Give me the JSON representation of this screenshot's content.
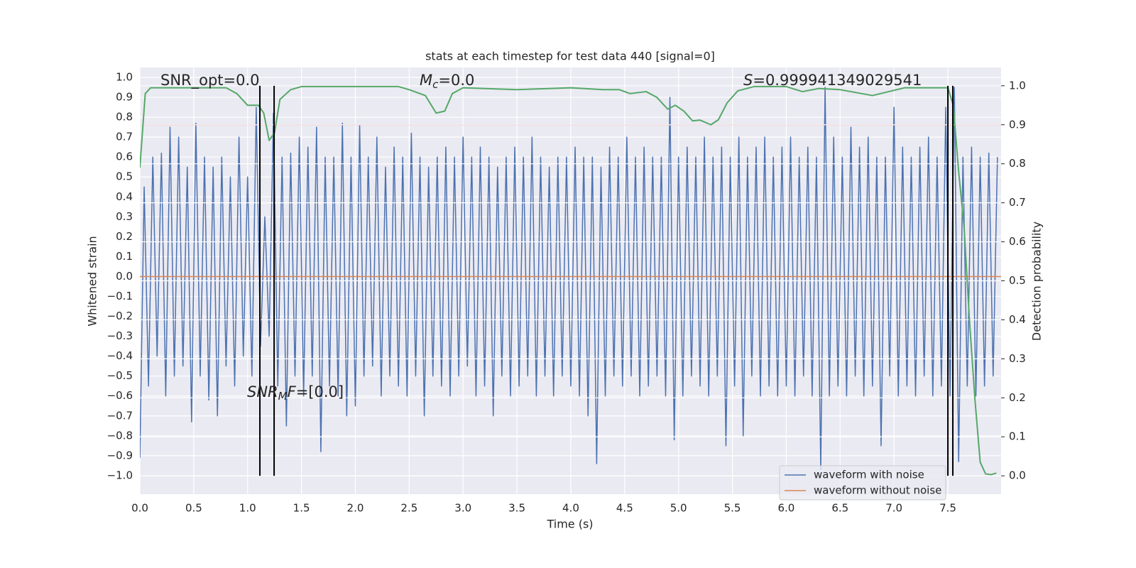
{
  "chart_data": {
    "type": "line",
    "title": "stats at each timestep for test data 440 [signal=0]",
    "xlabel": "Time (s)",
    "ylabel": "Whitened strain",
    "y2label": "Detection probability",
    "xlim": [
      0,
      7.994
    ],
    "ylim": [
      -1.093,
      1.05
    ],
    "y2lim": [
      -0.047,
      1.047
    ],
    "xticks": [
      {
        "value": 0,
        "label": "0.0"
      },
      0.5,
      {
        "value": 1,
        "label": "1.0"
      },
      1.5,
      {
        "value": 2,
        "label": "2.0"
      },
      2.5,
      {
        "value": 3,
        "label": "3.0"
      },
      3.5,
      {
        "value": 4,
        "label": "4.0"
      },
      4.5,
      {
        "value": 5,
        "label": "5.0"
      },
      5.5,
      {
        "value": 6,
        "label": "6.0"
      },
      6.5,
      {
        "value": 7,
        "label": "7.0"
      },
      7.5
    ],
    "yticks": [
      {
        "value": -1,
        "label": "−1.0"
      },
      {
        "value": -0.9,
        "label": "−0.9"
      },
      {
        "value": -0.8,
        "label": "−0.8"
      },
      {
        "value": -0.7,
        "label": "−0.7"
      },
      {
        "value": -0.6,
        "label": "−0.6"
      },
      {
        "value": -0.5,
        "label": "−0.5"
      },
      {
        "value": -0.4,
        "label": "−0.4"
      },
      {
        "value": -0.3,
        "label": "−0.3"
      },
      {
        "value": -0.2,
        "label": "−0.2"
      },
      {
        "value": -0.1,
        "label": "−0.1"
      },
      {
        "value": 0,
        "label": "0.0"
      },
      0.1,
      0.2,
      0.3,
      0.4,
      0.5,
      0.6,
      0.7,
      0.8,
      0.9,
      {
        "value": 1,
        "label": "1.0"
      }
    ],
    "y2ticks": [
      {
        "value": 0,
        "label": "0.0"
      },
      0.1,
      0.2,
      0.3,
      0.4,
      0.5,
      0.6,
      0.7,
      0.8,
      0.9,
      {
        "value": 1,
        "label": "1.0"
      }
    ],
    "grid": true,
    "legend": "lower right",
    "series": [
      {
        "name": "waveform with noise",
        "color": "#4c72b0",
        "x0": 0,
        "dx": 0.04,
        "values": [
          -0.91,
          0.45,
          -0.55,
          0.6,
          -0.4,
          0.62,
          -0.6,
          0.75,
          -0.5,
          0.7,
          -0.45,
          0.55,
          -0.73,
          0.77,
          -0.5,
          0.6,
          -0.62,
          0.55,
          -0.7,
          0.6,
          -0.45,
          0.5,
          -0.55,
          0.7,
          -0.4,
          0.5,
          -0.5,
          0.85,
          -0.35,
          0.3,
          -0.3,
          0.82,
          -0.55,
          0.6,
          -0.75,
          0.62,
          -0.5,
          0.7,
          -0.6,
          0.65,
          -0.5,
          0.75,
          -0.88,
          0.6,
          -0.55,
          0.6,
          -0.6,
          0.77,
          -0.7,
          0.6,
          -0.65,
          0.76,
          -0.5,
          0.6,
          -0.45,
          0.7,
          -0.6,
          0.55,
          -0.5,
          0.65,
          -0.55,
          0.6,
          -0.6,
          0.72,
          -0.5,
          0.6,
          -0.7,
          0.55,
          -0.5,
          0.6,
          -0.55,
          0.65,
          -0.6,
          0.6,
          -0.5,
          0.7,
          -0.45,
          0.6,
          -0.6,
          0.65,
          -0.55,
          0.6,
          -0.7,
          0.55,
          -0.5,
          0.6,
          -0.6,
          0.65,
          -0.55,
          0.6,
          -0.5,
          0.7,
          -0.6,
          0.6,
          -0.5,
          0.55,
          -0.6,
          0.6,
          -0.5,
          0.6,
          -0.55,
          0.65,
          -0.6,
          0.6,
          -0.7,
          0.6,
          -0.94,
          0.55,
          -0.6,
          0.65,
          -0.5,
          0.6,
          -0.55,
          0.7,
          -0.5,
          0.6,
          -0.6,
          0.65,
          -0.55,
          0.6,
          -0.5,
          0.6,
          -0.6,
          0.9,
          -0.82,
          0.6,
          -0.6,
          0.65,
          -0.5,
          0.6,
          -0.55,
          0.7,
          -0.6,
          0.6,
          -0.5,
          0.65,
          -0.85,
          0.6,
          -0.55,
          0.7,
          -0.8,
          0.6,
          -0.5,
          0.65,
          -0.6,
          0.7,
          -0.55,
          0.6,
          -0.6,
          0.65,
          -0.55,
          0.7,
          -0.6,
          0.6,
          -0.5,
          0.65,
          -0.6,
          0.6,
          -0.97,
          0.95,
          -0.6,
          0.7,
          -0.55,
          0.6,
          -0.6,
          0.75,
          -0.5,
          0.65,
          -0.6,
          0.7,
          -0.55,
          0.6,
          -0.85,
          0.6,
          -0.5,
          0.85,
          -0.6,
          0.65,
          -0.55,
          0.6,
          -0.6,
          0.65,
          -0.5,
          0.7,
          -0.6,
          0.6,
          -0.55,
          0.85,
          -0.6,
          0.95,
          -0.93,
          0.6,
          -0.55,
          0.65,
          -0.6,
          0.6,
          -0.55,
          0.62,
          -0.5,
          0.6
        ]
      },
      {
        "name": "waveform without noise",
        "color": "#dd8452",
        "x": [
          0,
          7.994
        ],
        "values": [
          0,
          0
        ]
      },
      {
        "color": "#55a868",
        "axis": "y2",
        "x": [
          0,
          0.05,
          0.1,
          0.8,
          0.9,
          1.0,
          1.1,
          1.15,
          1.2,
          1.25,
          1.3,
          1.4,
          1.5,
          2.4,
          2.5,
          2.65,
          2.75,
          2.83,
          2.9,
          3.0,
          3.5,
          4.0,
          4.3,
          4.45,
          4.55,
          4.7,
          4.8,
          4.9,
          4.97,
          5.05,
          5.13,
          5.2,
          5.3,
          5.37,
          5.45,
          5.55,
          5.7,
          6.0,
          6.15,
          6.3,
          6.5,
          6.8,
          6.95,
          7.1,
          7.5,
          7.55,
          7.6,
          7.65,
          7.7,
          7.75,
          7.8,
          7.85,
          7.9,
          7.95
        ],
        "values": [
          0.79,
          0.98,
          0.995,
          0.995,
          0.98,
          0.95,
          0.95,
          0.93,
          0.86,
          0.88,
          0.965,
          0.99,
          0.998,
          0.998,
          0.99,
          0.975,
          0.93,
          0.935,
          0.98,
          0.995,
          0.99,
          0.995,
          0.99,
          0.99,
          0.98,
          0.985,
          0.97,
          0.94,
          0.95,
          0.935,
          0.91,
          0.912,
          0.9,
          0.913,
          0.956,
          0.987,
          0.998,
          0.998,
          0.985,
          0.993,
          0.99,
          0.975,
          0.985,
          0.995,
          0.995,
          0.95,
          0.78,
          0.64,
          0.4,
          0.2,
          0.035,
          0.005,
          0.003,
          0.007
        ]
      }
    ],
    "hlines": [
      {
        "axis": "y2",
        "value": 0.9,
        "color": "#c44e52"
      }
    ],
    "vlines": [
      {
        "axis": "y2",
        "x": 1.114,
        "ymin": 0,
        "ymax": 1,
        "color": "#000000"
      },
      {
        "axis": "y2",
        "x": 1.246,
        "ymin": 0,
        "ymax": 1,
        "color": "#000000"
      },
      {
        "axis": "y2",
        "x": 7.5,
        "ymin": 0,
        "ymax": 1,
        "color": "#000000"
      },
      {
        "axis": "y2",
        "x": 7.546,
        "ymin": 0,
        "ymax": 1,
        "color": "#000000"
      }
    ],
    "annotations": [
      [
        {
          "t": "SNR_opt=0.0",
          "s": "plain"
        }
      ],
      [
        {
          "t": "M",
          "s": "math"
        },
        {
          "t": "c",
          "s": "sub"
        },
        {
          "t": "=0.0",
          "s": "plain"
        }
      ],
      [
        {
          "t": "S",
          "s": "math"
        },
        {
          "t": "=0.999941349029541",
          "s": "plain"
        }
      ],
      [
        {
          "t": "SNR",
          "s": "math"
        },
        {
          "t": "M",
          "s": "sub"
        },
        {
          "t": "F",
          "s": "math"
        },
        {
          "t": "=[0.0]",
          "s": "plain"
        }
      ]
    ]
  }
}
